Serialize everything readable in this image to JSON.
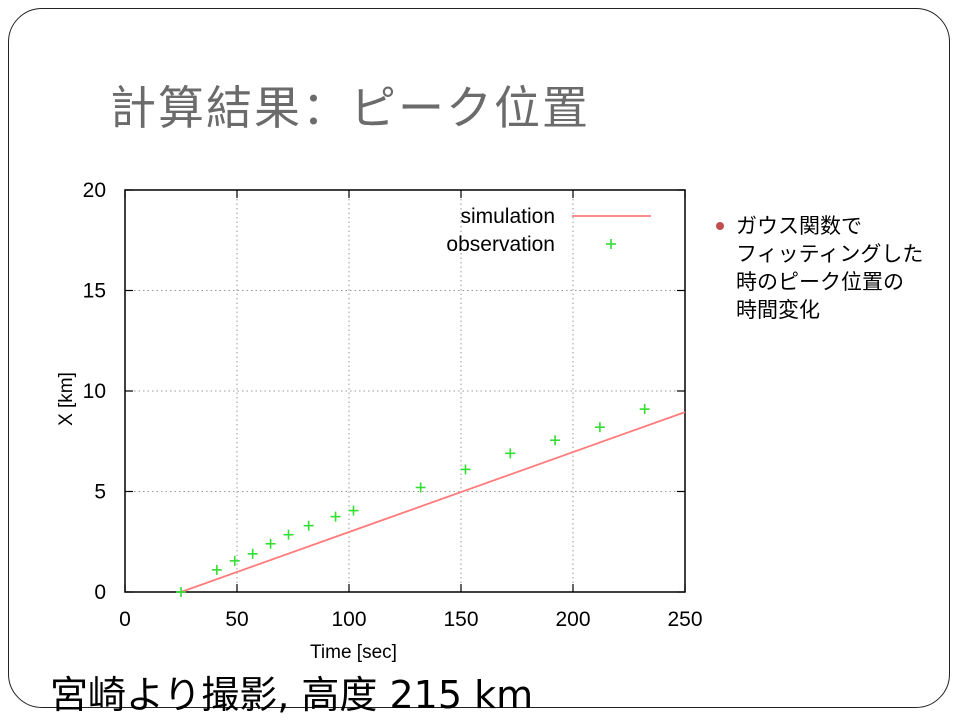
{
  "slide": {
    "title": "計算結果：ピーク位置",
    "bullet": "ガウス関数で\nフィッティングした\n時のピーク位置の\n時間変化",
    "caption": "宮崎より撮影, 高度 215 km",
    "bullet_color": "#c0504d"
  },
  "chart_data": {
    "type": "scatter",
    "xlabel": "Time [sec]",
    "ylabel": "X [km]",
    "xlim": [
      0,
      250
    ],
    "ylim": [
      0,
      20
    ],
    "xticks": [
      0,
      50,
      100,
      150,
      200,
      250
    ],
    "yticks": [
      0,
      5,
      10,
      15,
      20
    ],
    "grid": true,
    "legend_position": "top-right",
    "series": [
      {
        "name": "simulation",
        "type": "line",
        "color": "#ff7b7b",
        "x": [
          25,
          250
        ],
        "y": [
          0,
          8.95
        ]
      },
      {
        "name": "observation",
        "type": "scatter",
        "marker": "+",
        "color": "#33dd33",
        "x": [
          25,
          41,
          49,
          57,
          65,
          73,
          82,
          94,
          102,
          132,
          152,
          172,
          192,
          212,
          232
        ],
        "y": [
          0.0,
          1.1,
          1.55,
          1.9,
          2.4,
          2.85,
          3.3,
          3.75,
          4.05,
          5.2,
          6.1,
          6.9,
          7.55,
          8.2,
          9.1
        ]
      }
    ]
  }
}
